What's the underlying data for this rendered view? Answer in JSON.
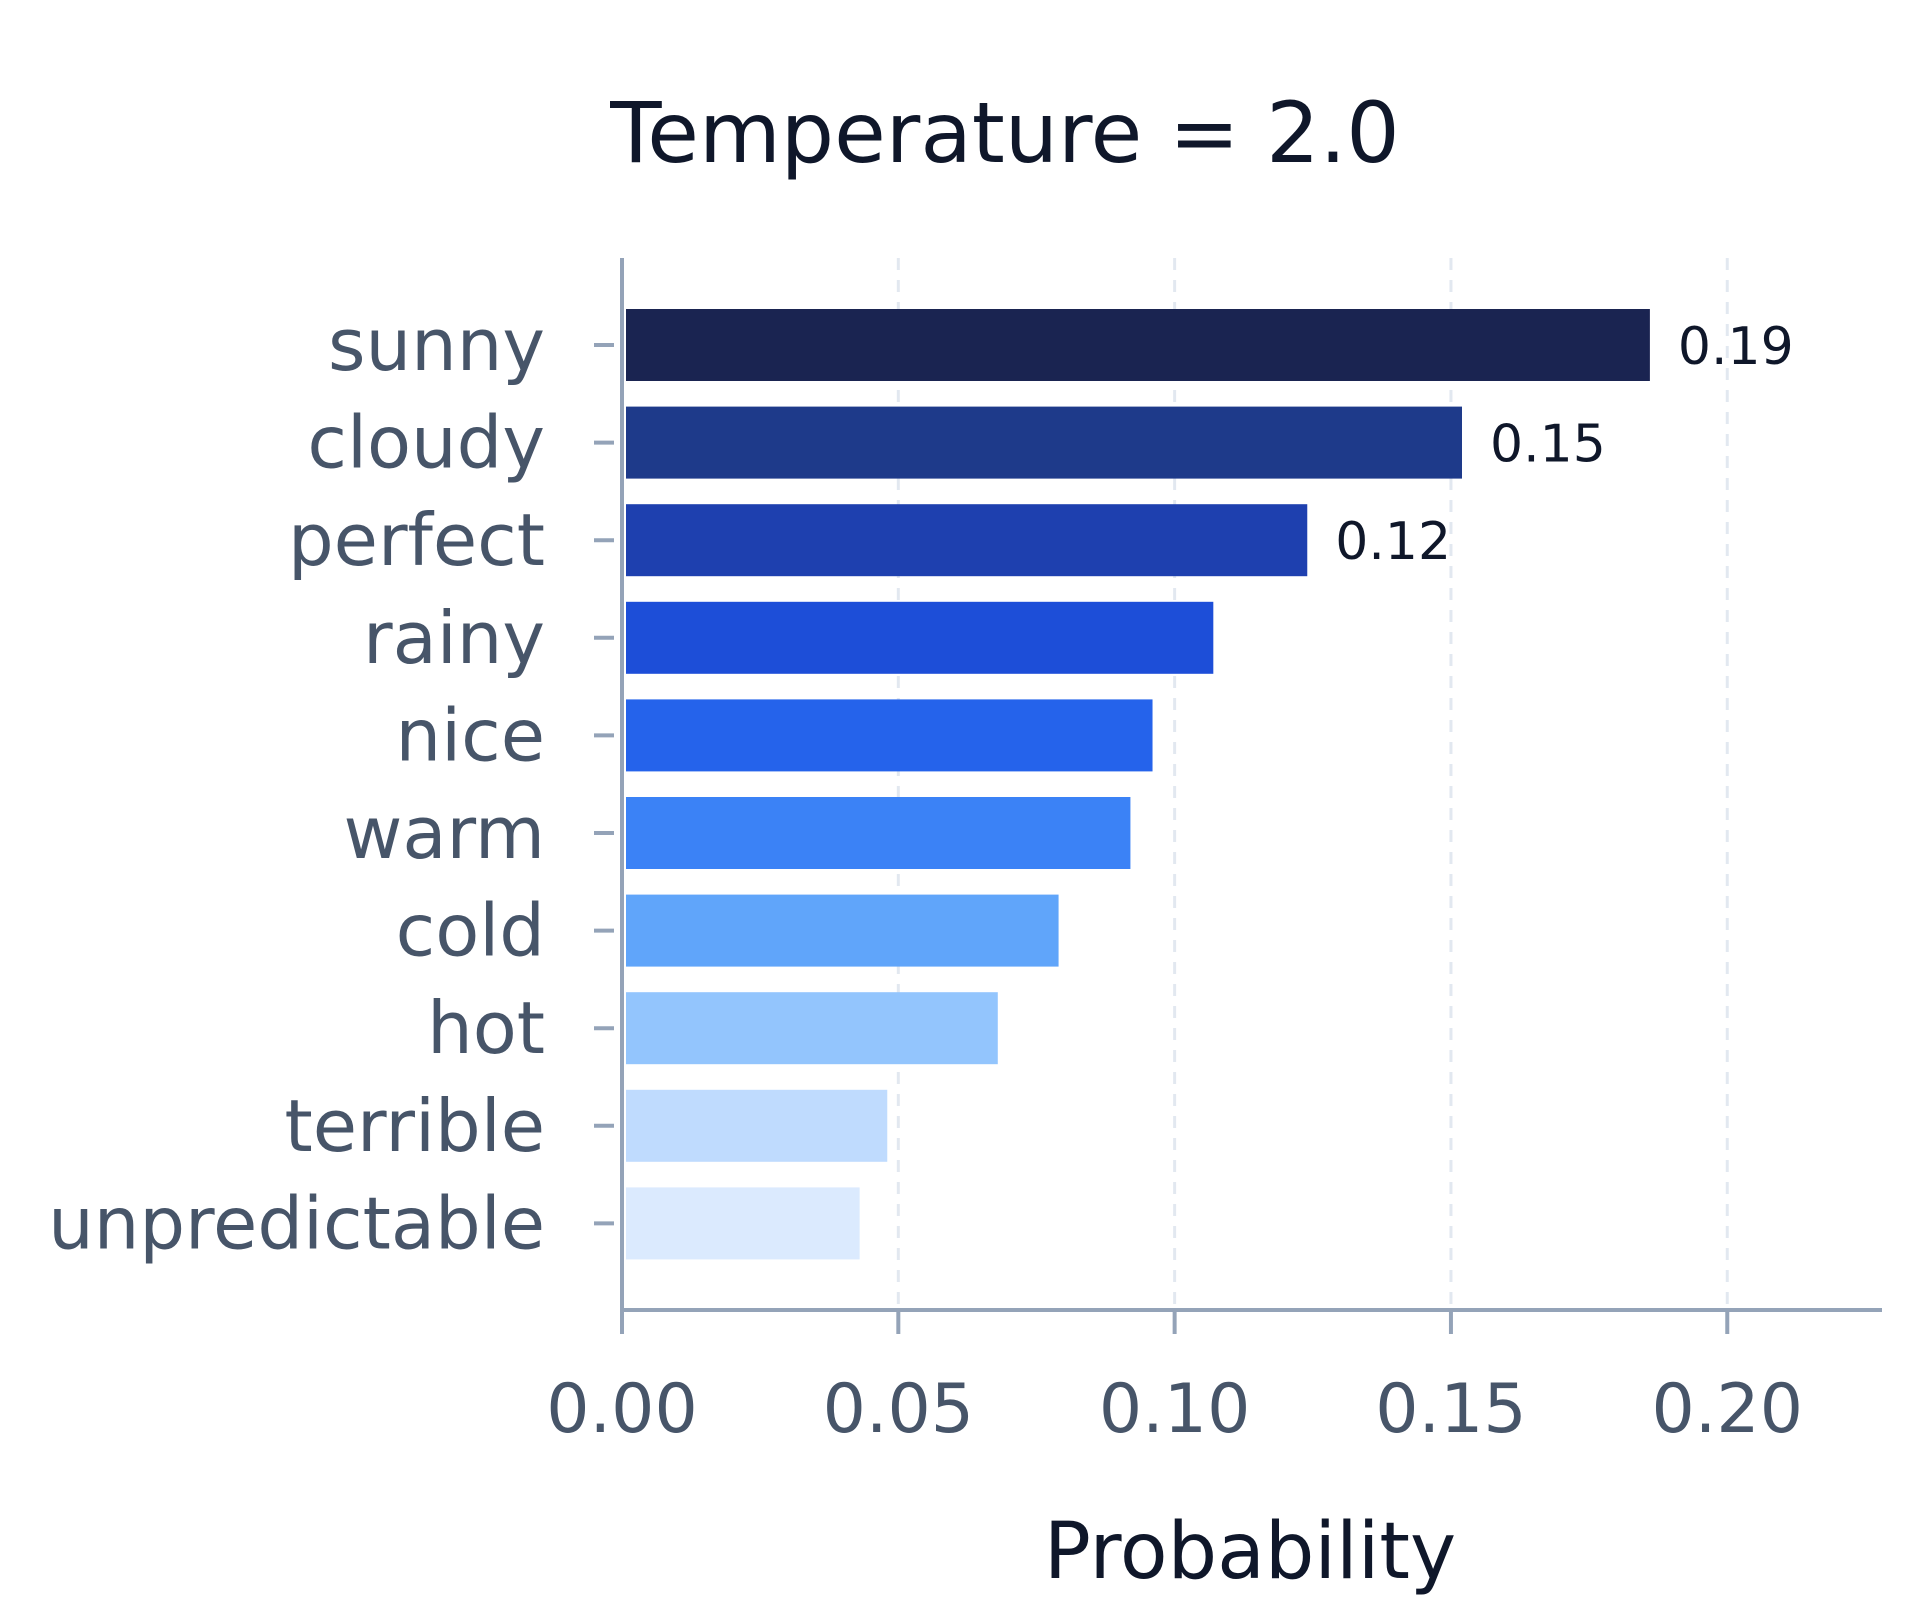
{
  "chart_data": {
    "type": "bar",
    "orientation": "horizontal",
    "title": "Temperature = 2.0",
    "xlabel": "Probability",
    "ylabel": "",
    "xlim": [
      0,
      0.228
    ],
    "xticks": [
      0.0,
      0.05,
      0.1,
      0.15,
      0.2
    ],
    "xtick_labels": [
      "0.00",
      "0.05",
      "0.10",
      "0.15",
      "0.20"
    ],
    "grid": "vertical dashed",
    "categories": [
      "sunny",
      "cloudy",
      "perfect",
      "rainy",
      "nice",
      "warm",
      "cold",
      "hot",
      "terrible",
      "unpredictable"
    ],
    "values": [
      0.186,
      0.152,
      0.124,
      0.107,
      0.096,
      0.092,
      0.079,
      0.068,
      0.048,
      0.043
    ],
    "data_labels": [
      "0.19",
      "0.15",
      "0.12",
      "",
      "",
      "",
      "",
      "",
      "",
      ""
    ],
    "colors": [
      "#1a2451",
      "#1e3a8a",
      "#1e40af",
      "#1d4ed8",
      "#2563eb",
      "#3b82f6",
      "#60a5fa",
      "#93c5fd",
      "#bfdbfe",
      "#dbeafe"
    ]
  }
}
